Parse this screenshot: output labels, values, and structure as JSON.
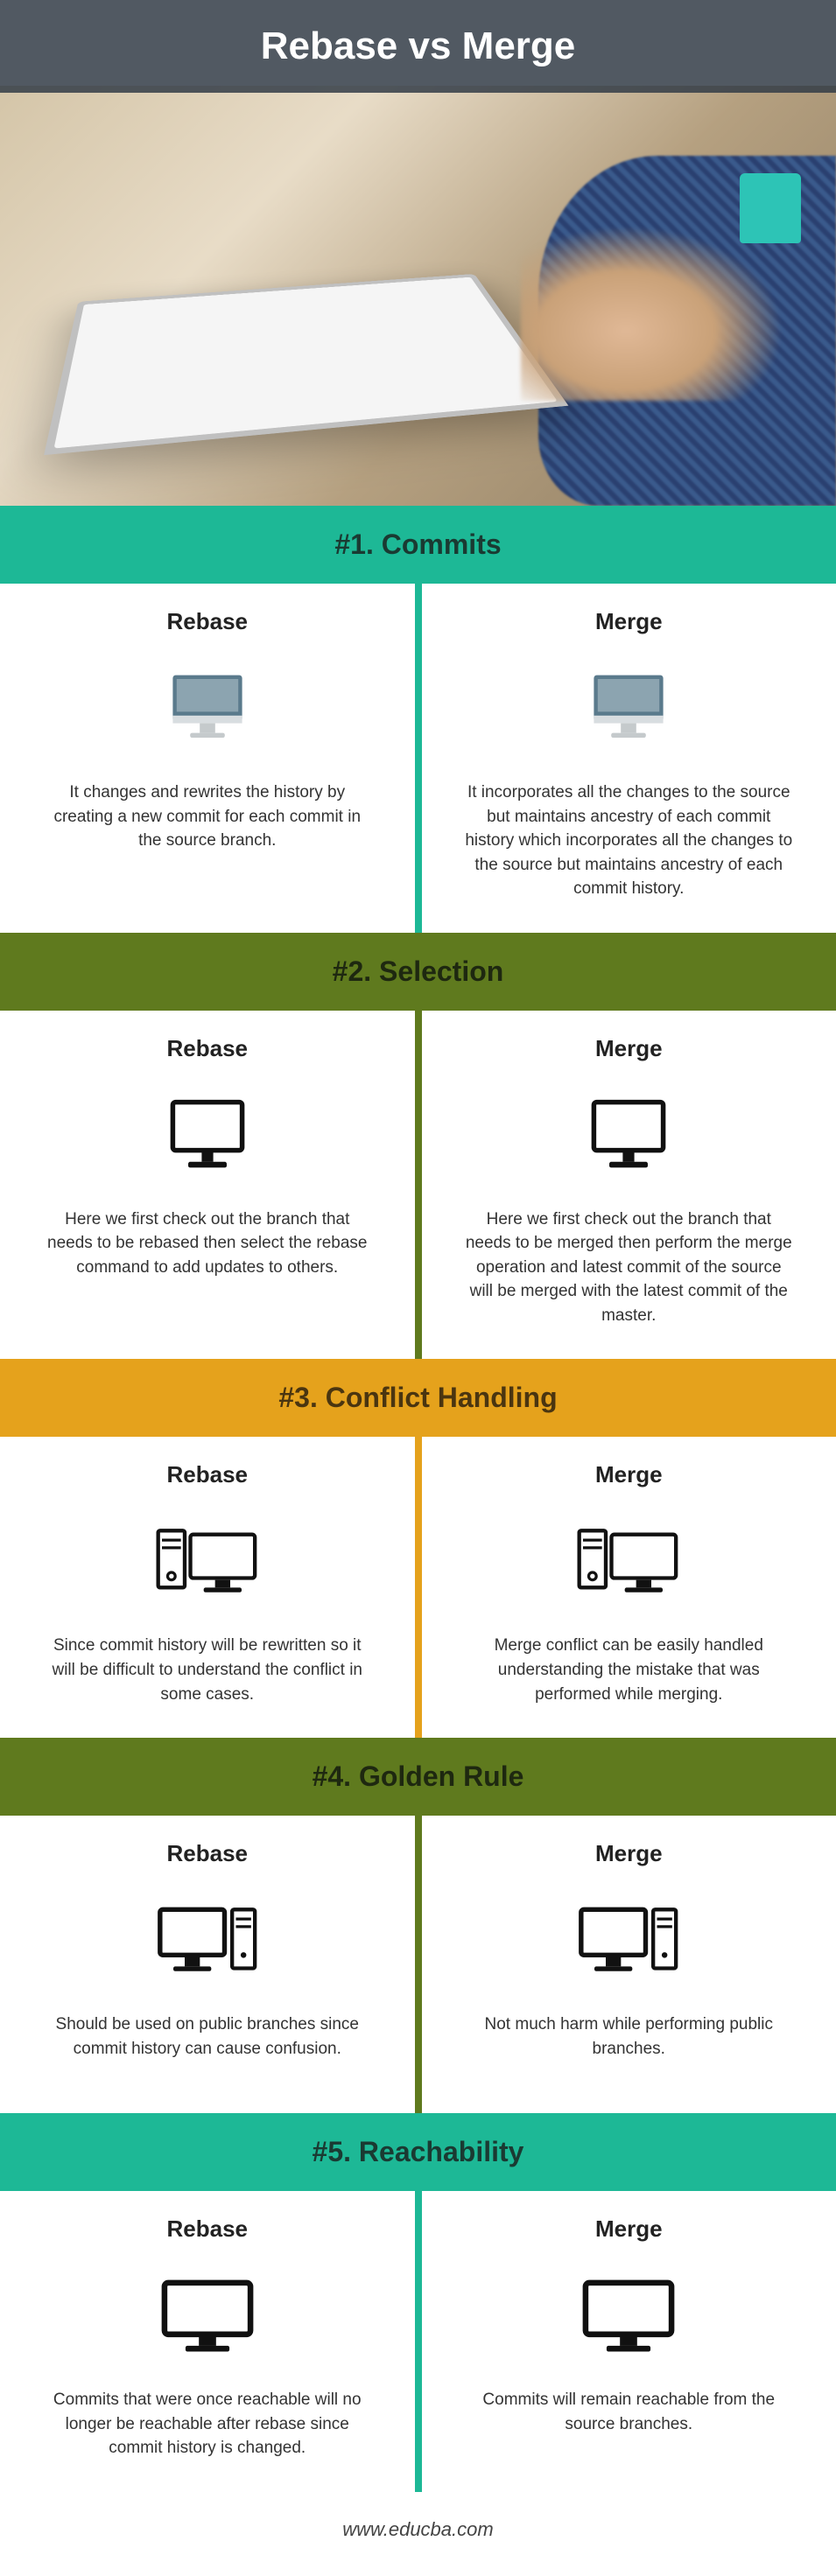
{
  "title": "Rebase vs Merge",
  "footer": "www.educba.com",
  "colors": {
    "teal": "#1db896",
    "olive": "#5f7a1e",
    "orange": "#e5a21c",
    "title_overlay": "rgba(50,60,70,0.85)"
  },
  "labels": {
    "rebase": "Rebase",
    "merge": "Merge"
  },
  "sections": [
    {
      "num": "#1.",
      "title": "Commits",
      "header_class": "teal-bg",
      "divider_class": "d-teal",
      "icon": "imac-flat",
      "rebase_text": "It changes and rewrites the history by creating a new commit for each commit in the source branch.",
      "merge_text": "It incorporates all the changes to the source but maintains ancestry of each commit history which incorporates all the changes to the source but maintains ancestry of each commit history."
    },
    {
      "num": "#2.",
      "title": "Selection",
      "header_class": "olive-bg",
      "divider_class": "d-olive",
      "icon": "monitor-line",
      "rebase_text": "Here we first check out the branch that needs to be rebased then select the rebase command to add updates to others.",
      "merge_text": "Here we first check out the branch that needs to be merged then perform the merge operation and latest commit of the source will be merged with the latest commit of the master."
    },
    {
      "num": "#3.",
      "title": "Conflict Handling",
      "header_class": "orange-bg",
      "divider_class": "d-orange",
      "icon": "server-monitor",
      "rebase_text": "Since commit history will be rewritten so it will be difficult to understand the conflict in some cases.",
      "merge_text": "Merge conflict can be easily handled understanding the mistake that was performed while merging."
    },
    {
      "num": "#4.",
      "title": "Golden Rule",
      "header_class": "olive-bg",
      "divider_class": "d-olive",
      "icon": "pc-tower",
      "rebase_text": "Should be used on public branches since commit history can cause confusion.",
      "merge_text": "Not much harm while performing public branches."
    },
    {
      "num": "#5.",
      "title": "Reachability",
      "header_class": "teal-bg",
      "divider_class": "d-teal",
      "icon": "wide-monitor",
      "rebase_text": "Commits that were once reachable will no longer be reachable after rebase since commit history is changed.",
      "merge_text": "Commits will remain reachable from the source branches."
    }
  ]
}
